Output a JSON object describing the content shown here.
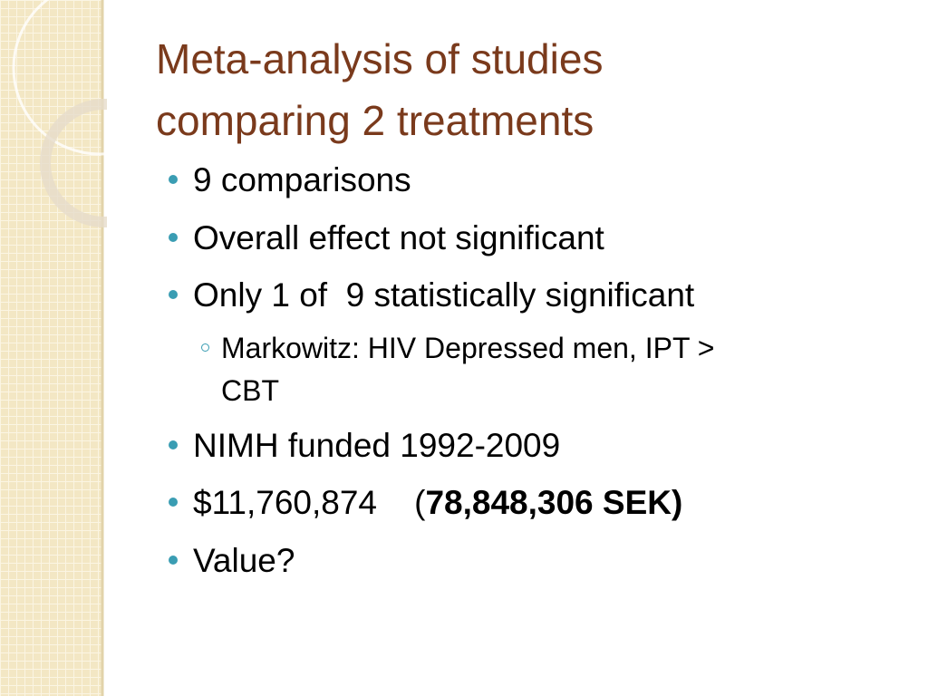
{
  "title": [
    "Meta-analysis of studies",
    "comparing 2 treatments"
  ],
  "bullets": [
    {
      "text": "9 comparisons"
    },
    {
      "text": "Overall effect not significant"
    },
    {
      "text": "Only 1 of  9 statistically significant",
      "sub": [
        [
          "Markowitz: HIV Depressed men, IPT >",
          "CBT"
        ]
      ]
    },
    {
      "text": "NIMH funded 1992-2009"
    },
    {
      "text": "$11,760,874    (",
      "bold": "78,848,306 SEK)"
    },
    {
      "text": "Value?"
    }
  ]
}
